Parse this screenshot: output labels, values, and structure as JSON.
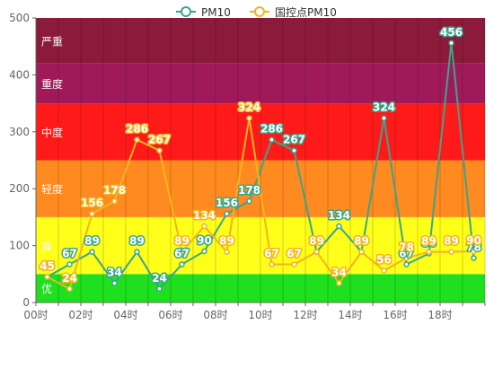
{
  "chart_data": {
    "type": "line",
    "title": "",
    "xlabel": "",
    "ylabel": "",
    "ylim": [
      0,
      500
    ],
    "y_ticks": [
      0,
      100,
      200,
      300,
      400,
      500
    ],
    "categories": [
      "00时",
      "01时",
      "02时",
      "03时",
      "04时",
      "05时",
      "06时",
      "07时",
      "08时",
      "09时",
      "10时",
      "11时",
      "12时",
      "13时",
      "14时",
      "15时",
      "16时",
      "17时",
      "18时",
      "19时"
    ],
    "x_tick_labels": [
      "00时",
      "02时",
      "04时",
      "06时",
      "08时",
      "10时",
      "12时",
      "14时",
      "16时",
      "18时"
    ],
    "grid": false,
    "legend_position": "top",
    "aqi_bands": [
      {
        "label": "优",
        "from": 0,
        "to": 50,
        "color": "#1ee01e"
      },
      {
        "label": "良",
        "from": 50,
        "to": 150,
        "color": "#ffff1a"
      },
      {
        "label": "轻度",
        "from": 150,
        "to": 250,
        "color": "#ff8a1f"
      },
      {
        "label": "中度",
        "from": 250,
        "to": 350,
        "color": "#ff1a1a"
      },
      {
        "label": "重度",
        "from": 350,
        "to": 420,
        "color": "#a01a5a"
      },
      {
        "label": "严重",
        "from": 420,
        "to": 500,
        "color": "#8c1a3a"
      }
    ],
    "series": [
      {
        "name": "PM10",
        "color": "#3aa68a",
        "values": [
          45,
          67,
          89,
          34,
          89,
          24,
          67,
          90,
          156,
          178,
          286,
          267,
          89,
          134,
          89,
          324,
          67,
          86,
          456,
          78
        ]
      },
      {
        "name": "国控点PM10",
        "color": "#f2b41e",
        "values": [
          45,
          24,
          156,
          178,
          286,
          267,
          89,
          134,
          89,
          324,
          67,
          67,
          89,
          34,
          89,
          56,
          78,
          89,
          89,
          90
        ]
      }
    ]
  }
}
